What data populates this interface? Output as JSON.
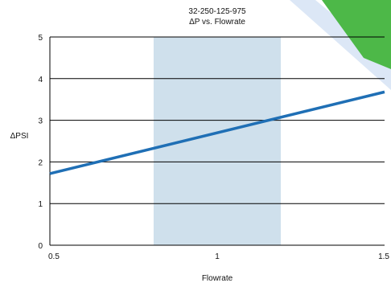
{
  "chart_data": {
    "type": "line",
    "title": "32-250-125-975",
    "subtitle": "ΔP vs. Flowrate",
    "xlabel": "Flowrate",
    "ylabel": "ΔPSI",
    "xlim": [
      0.5,
      1.5
    ],
    "ylim": [
      0,
      5
    ],
    "x_ticks": [
      "0.5",
      "1",
      "1.5"
    ],
    "y_ticks": [
      "0",
      "1",
      "2",
      "3",
      "4",
      "5"
    ],
    "grid": "horizontal",
    "highlight_band": {
      "x": [
        0.81,
        1.19
      ],
      "color": "#cfe0ec"
    },
    "series": [
      {
        "x": [
          0.5,
          1.5
        ],
        "y": [
          1.72,
          3.68
        ],
        "color": "#1f6fb5"
      }
    ]
  },
  "decoration": {
    "corner_accent_color": "#4db848",
    "swoosh_color": "#dce7f6"
  }
}
